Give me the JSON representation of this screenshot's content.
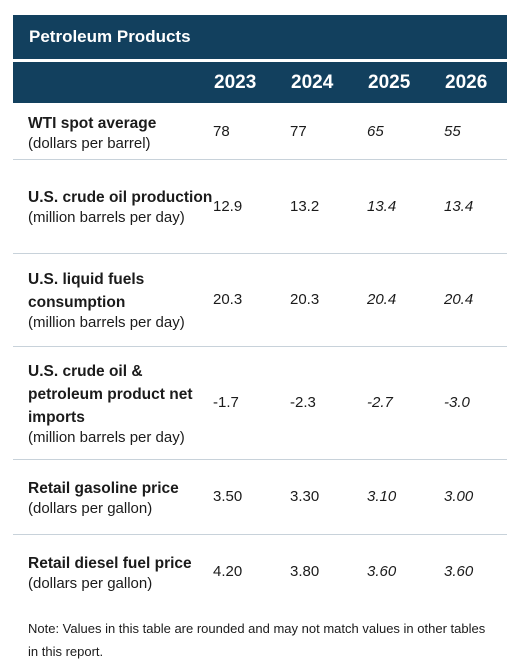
{
  "table": {
    "title": "Petroleum Products",
    "years": [
      "2023",
      "2024",
      "2025",
      "2026"
    ],
    "projected_year_flags": [
      false,
      false,
      true,
      true
    ],
    "rows": [
      {
        "name": "WTI spot average",
        "unit": "(dollars per barrel)",
        "values": [
          "78",
          "77",
          "65",
          "55"
        ]
      },
      {
        "name": "U.S. crude oil production",
        "unit": "(million barrels per day)",
        "values": [
          "12.9",
          "13.2",
          "13.4",
          "13.4"
        ]
      },
      {
        "name": "U.S. liquid fuels consumption",
        "unit": "(million barrels per day)",
        "values": [
          "20.3",
          "20.3",
          "20.4",
          "20.4"
        ]
      },
      {
        "name": "U.S. crude oil & petroleum product net imports",
        "unit": "(million barrels per day)",
        "values": [
          "-1.7",
          "-2.3",
          "-2.7",
          "-3.0"
        ]
      },
      {
        "name": "Retail gasoline price",
        "unit": "(dollars per gallon)",
        "values": [
          "3.50",
          "3.30",
          "3.10",
          "3.00"
        ]
      },
      {
        "name": "Retail diesel fuel price",
        "unit": "(dollars per gallon)",
        "values": [
          "4.20",
          "3.80",
          "3.60",
          "3.60"
        ]
      }
    ],
    "note": "Note: Values in this table are rounded and may not match values in other tables in this report."
  },
  "colors": {
    "header_bg": "#12405e",
    "header_text": "#ffffff",
    "row_divider": "#c8d2da"
  }
}
